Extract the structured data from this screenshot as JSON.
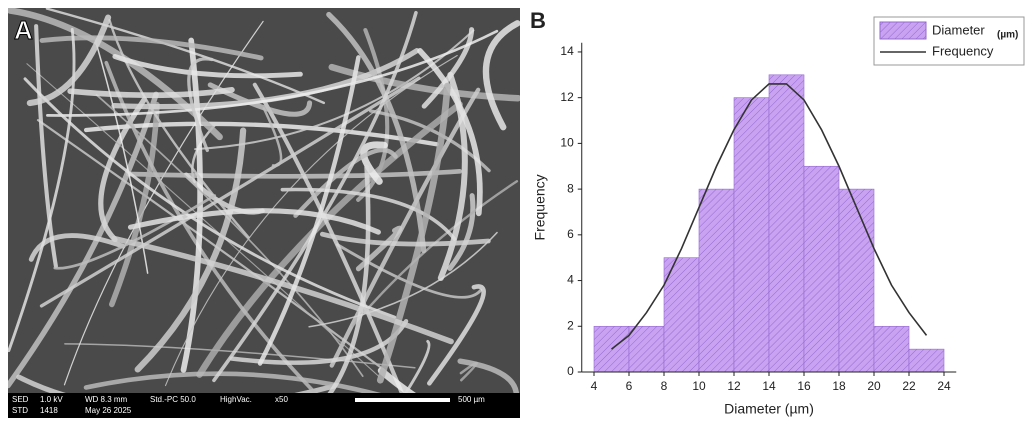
{
  "panel_a": {
    "label": "A",
    "info_line_1": [
      "SED",
      "1.0 kV",
      "WD 8.3 mm",
      "Std.-PC 50.0",
      "HighVac.",
      "x50"
    ],
    "info_line_2": [
      "STD",
      "1418",
      "May 26 2025"
    ],
    "scale_label": "500 µm"
  },
  "chart_data": {
    "type": "histogram",
    "panel_label": "B",
    "bins": [
      4,
      6,
      8,
      10,
      12,
      14,
      16,
      18,
      20,
      22,
      24
    ],
    "values": [
      2,
      2,
      5,
      8,
      12,
      13,
      9,
      8,
      2,
      1
    ],
    "series": [
      {
        "name": "Diameter",
        "name_unit": "(µm)",
        "color": "#c9a3f2",
        "hatch_color": "#9469cf"
      },
      {
        "name": "Frequency",
        "color": "#333333",
        "x": [
          5,
          6,
          7,
          8,
          9,
          10,
          11,
          12,
          13,
          14,
          15,
          16,
          17,
          18,
          19,
          20,
          21,
          22,
          23
        ],
        "values": [
          1.0,
          1.6,
          2.6,
          3.8,
          5.4,
          7.2,
          9.0,
          10.6,
          11.9,
          12.6,
          12.6,
          11.9,
          10.6,
          9.0,
          7.2,
          5.4,
          3.8,
          2.6,
          1.6
        ]
      }
    ],
    "x_label": "Diameter (µm)",
    "y_label": "Frequency",
    "xlim": [
      3.3,
      24.7
    ],
    "ylim": [
      0,
      14.4
    ],
    "xticks": [
      4,
      6,
      8,
      10,
      12,
      14,
      16,
      18,
      20,
      22,
      24
    ],
    "yticks": [
      0,
      2,
      4,
      6,
      8,
      10,
      12,
      14
    ]
  }
}
